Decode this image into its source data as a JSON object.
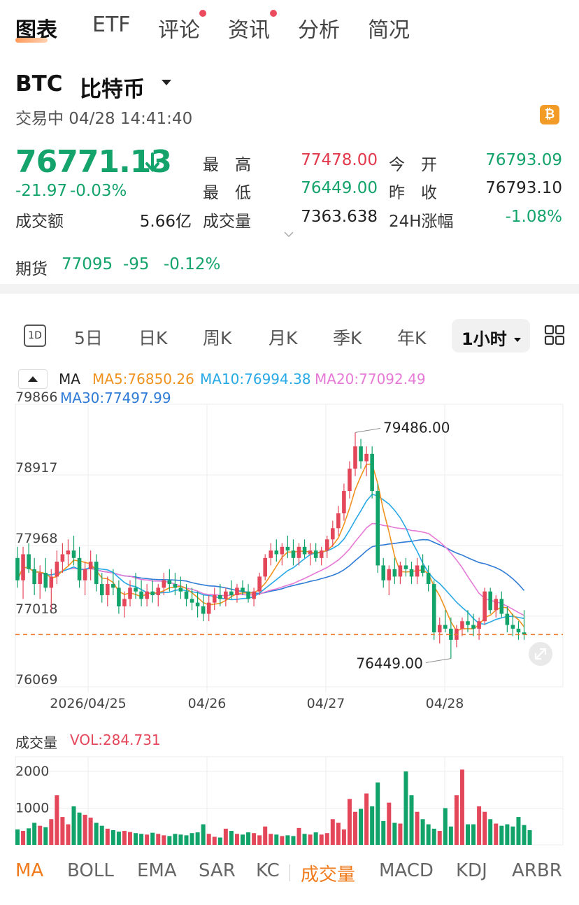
{
  "tabs": [
    {
      "label": "图表",
      "active": true,
      "badge": false
    },
    {
      "label": "ETF",
      "active": false,
      "badge": false
    },
    {
      "label": "评论",
      "active": false,
      "badge": true
    },
    {
      "label": "资讯",
      "active": false,
      "badge": true
    },
    {
      "label": "分析",
      "active": false,
      "badge": false
    },
    {
      "label": "简况",
      "active": false,
      "badge": false
    }
  ],
  "ticker": {
    "symbol": "BTC",
    "name": "比特币",
    "status": "交易中 04/28 14:41:40",
    "badge_icon": "bitcoin-icon"
  },
  "quote": {
    "price": "76771.13",
    "change": "-21.97",
    "change_pct": "-0.03%",
    "turnover_label": "成交额",
    "turnover": "5.66亿",
    "high_label": "最　高",
    "high": "77478.00",
    "low_label": "最　低",
    "low": "76449.00",
    "volume_label": "成交量",
    "volume": "7363.638",
    "open_label": "今　开",
    "open": "76793.09",
    "prev_close_label": "昨　收",
    "prev_close": "76793.10",
    "change24_label": "24H涨幅",
    "change24": "-1.08%"
  },
  "futures": {
    "label": "期货",
    "price": "77095",
    "change": "-95",
    "change_pct": "-0.12%"
  },
  "periods": [
    {
      "label": "1D",
      "boxed": true
    },
    {
      "label": "5日"
    },
    {
      "label": "日K"
    },
    {
      "label": "周K"
    },
    {
      "label": "月K"
    },
    {
      "label": "季K"
    },
    {
      "label": "年K"
    }
  ],
  "period_selected": "1小时",
  "ma_legend": {
    "label": "MA",
    "ma5": "MA5:76850.26",
    "ma10": "MA10:76994.38",
    "ma20": "MA20:77092.49",
    "ma30": "MA30:77497.99"
  },
  "colors": {
    "up": "#e5475a",
    "down": "#12a36b",
    "ma5": "#f0921e",
    "ma10": "#27a9e6",
    "ma20": "#e67ad6",
    "ma30": "#2f7bd6",
    "last": "#ee7a2c"
  },
  "chart_data": {
    "type": "candlestick",
    "y_ticks": [
      "79866",
      "78917",
      "77968",
      "77018",
      "76069"
    ],
    "x_ticks": [
      "2026/04/25",
      "04/26",
      "04/27",
      "04/28"
    ],
    "ylim": [
      76069,
      79866
    ],
    "high_label": "79486.00",
    "low_label": "76449.00",
    "last_price": 76771.13,
    "candles": [
      [
        77800,
        77950,
        77400,
        77500
      ],
      [
        77500,
        77950,
        77250,
        77850
      ],
      [
        77850,
        78000,
        77600,
        77650
      ],
      [
        77650,
        77800,
        77300,
        77450
      ],
      [
        77450,
        77700,
        77250,
        77600
      ],
      [
        77600,
        77800,
        77350,
        77400
      ],
      [
        77400,
        77650,
        77100,
        77550
      ],
      [
        77550,
        77900,
        77450,
        77750
      ],
      [
        77750,
        78000,
        77600,
        77850
      ],
      [
        77850,
        78050,
        77700,
        77900
      ],
      [
        77900,
        78100,
        77700,
        77800
      ],
      [
        77800,
        77950,
        77400,
        77500
      ],
      [
        77500,
        77750,
        77300,
        77650
      ],
      [
        77650,
        77900,
        77500,
        77750
      ],
      [
        77750,
        77850,
        77350,
        77450
      ],
      [
        77450,
        77600,
        77200,
        77300
      ],
      [
        77300,
        77550,
        77150,
        77450
      ],
      [
        77450,
        77650,
        77300,
        77400
      ],
      [
        77400,
        77500,
        77050,
        77150
      ],
      [
        77150,
        77350,
        77000,
        77250
      ],
      [
        77250,
        77500,
        77150,
        77400
      ],
      [
        77400,
        77600,
        77250,
        77350
      ],
      [
        77350,
        77500,
        77150,
        77250
      ],
      [
        77250,
        77450,
        77150,
        77350
      ],
      [
        77350,
        77500,
        77200,
        77300
      ],
      [
        77300,
        77450,
        77150,
        77400
      ],
      [
        77400,
        77600,
        77300,
        77500
      ],
      [
        77500,
        77650,
        77350,
        77450
      ],
      [
        77450,
        77600,
        77300,
        77400
      ],
      [
        77400,
        77550,
        77250,
        77350
      ],
      [
        77350,
        77450,
        77150,
        77250
      ],
      [
        77250,
        77400,
        77100,
        77200
      ],
      [
        77200,
        77350,
        77000,
        77150
      ],
      [
        77150,
        77300,
        76950,
        77050
      ],
      [
        77050,
        77300,
        76950,
        77200
      ],
      [
        77200,
        77400,
        77100,
        77300
      ],
      [
        77300,
        77450,
        77150,
        77250
      ],
      [
        77250,
        77400,
        77150,
        77350
      ],
      [
        77350,
        77500,
        77250,
        77300
      ],
      [
        77300,
        77450,
        77200,
        77400
      ],
      [
        77400,
        77500,
        77300,
        77350
      ],
      [
        77350,
        77450,
        77200,
        77250
      ],
      [
        77250,
        77400,
        77150,
        77350
      ],
      [
        77350,
        77600,
        77300,
        77550
      ],
      [
        77550,
        77850,
        77500,
        77800
      ],
      [
        77800,
        78000,
        77700,
        77900
      ],
      [
        77900,
        78050,
        77750,
        77850
      ],
      [
        77850,
        78000,
        77700,
        77950
      ],
      [
        77950,
        78100,
        77800,
        77900
      ],
      [
        77900,
        78050,
        77700,
        77800
      ],
      [
        77800,
        78000,
        77700,
        77950
      ],
      [
        77950,
        78050,
        77800,
        77850
      ],
      [
        77850,
        78000,
        77700,
        77900
      ],
      [
        77900,
        78000,
        77750,
        77800
      ],
      [
        77800,
        77950,
        77700,
        77900
      ],
      [
        77900,
        78100,
        77800,
        78050
      ],
      [
        78050,
        78300,
        77950,
        78200
      ],
      [
        78200,
        78500,
        78100,
        78400
      ],
      [
        78400,
        78800,
        78300,
        78700
      ],
      [
        78700,
        79100,
        78600,
        79000
      ],
      [
        79000,
        79486,
        78900,
        79300
      ],
      [
        79300,
        79400,
        79000,
        79100
      ],
      [
        79100,
        79300,
        78900,
        79200
      ],
      [
        79200,
        79300,
        78600,
        78700
      ],
      [
        78700,
        78800,
        77600,
        77700
      ],
      [
        77700,
        77800,
        77400,
        77500
      ],
      [
        77500,
        77700,
        77300,
        77650
      ],
      [
        77650,
        77800,
        77450,
        77550
      ],
      [
        77550,
        77750,
        77450,
        77700
      ],
      [
        77700,
        77800,
        77550,
        77650
      ],
      [
        77650,
        77750,
        77450,
        77550
      ],
      [
        77550,
        77800,
        77450,
        77700
      ],
      [
        77700,
        77850,
        77550,
        77600
      ],
      [
        77600,
        77700,
        77350,
        77450
      ],
      [
        77450,
        77500,
        76700,
        76800
      ],
      [
        76800,
        77000,
        76650,
        76900
      ],
      [
        76900,
        77100,
        76800,
        76850
      ],
      [
        76850,
        77000,
        76449,
        76700
      ],
      [
        76700,
        76900,
        76600,
        76850
      ],
      [
        76850,
        77000,
        76750,
        76950
      ],
      [
        76950,
        77100,
        76800,
        76900
      ],
      [
        76900,
        77050,
        76750,
        76850
      ],
      [
        76850,
        77000,
        76700,
        76950
      ],
      [
        76950,
        77400,
        76900,
        77350
      ],
      [
        77350,
        77400,
        77050,
        77100
      ],
      [
        77100,
        77300,
        77000,
        77250
      ],
      [
        77250,
        77350,
        77000,
        77050
      ],
      [
        77050,
        77150,
        76800,
        76900
      ],
      [
        76900,
        77050,
        76750,
        76850
      ],
      [
        76850,
        76950,
        76700,
        76800
      ],
      [
        76800,
        77100,
        76700,
        76771
      ]
    ],
    "volume_label": "成交量",
    "vol_value": "VOL:284.731",
    "vol_ticks": [
      "2000",
      "1000"
    ],
    "vol_max": 2400,
    "volumes": [
      420,
      380,
      450,
      600,
      520,
      480,
      700,
      1350,
      760,
      560,
      1050,
      880,
      820,
      740,
      600,
      520,
      440,
      400,
      360,
      380,
      350,
      320,
      300,
      280,
      330,
      300,
      260,
      240,
      300,
      280,
      260,
      320,
      340,
      560,
      300,
      220,
      200,
      440,
      380,
      300,
      280,
      340,
      320,
      260,
      500,
      300,
      280,
      240,
      260,
      240,
      460,
      300,
      280,
      340,
      280,
      320,
      700,
      600,
      420,
      1250,
      900,
      980,
      1400,
      1050,
      1700,
      650,
      1150,
      600,
      580,
      2000,
      1350,
      900,
      700,
      560,
      440,
      380,
      1000,
      500,
      1350,
      2050,
      560,
      560,
      1050,
      900,
      700,
      580,
      520,
      560,
      500,
      760,
      540,
      400
    ]
  },
  "indicators": [
    {
      "label": "MA",
      "active": true
    },
    {
      "label": "BOLL"
    },
    {
      "label": "EMA"
    },
    {
      "label": "SAR"
    },
    {
      "label": "KC"
    },
    {
      "label": "成交量",
      "active": true
    },
    {
      "label": "MACD"
    },
    {
      "label": "KDJ"
    },
    {
      "label": "ARBR"
    }
  ]
}
